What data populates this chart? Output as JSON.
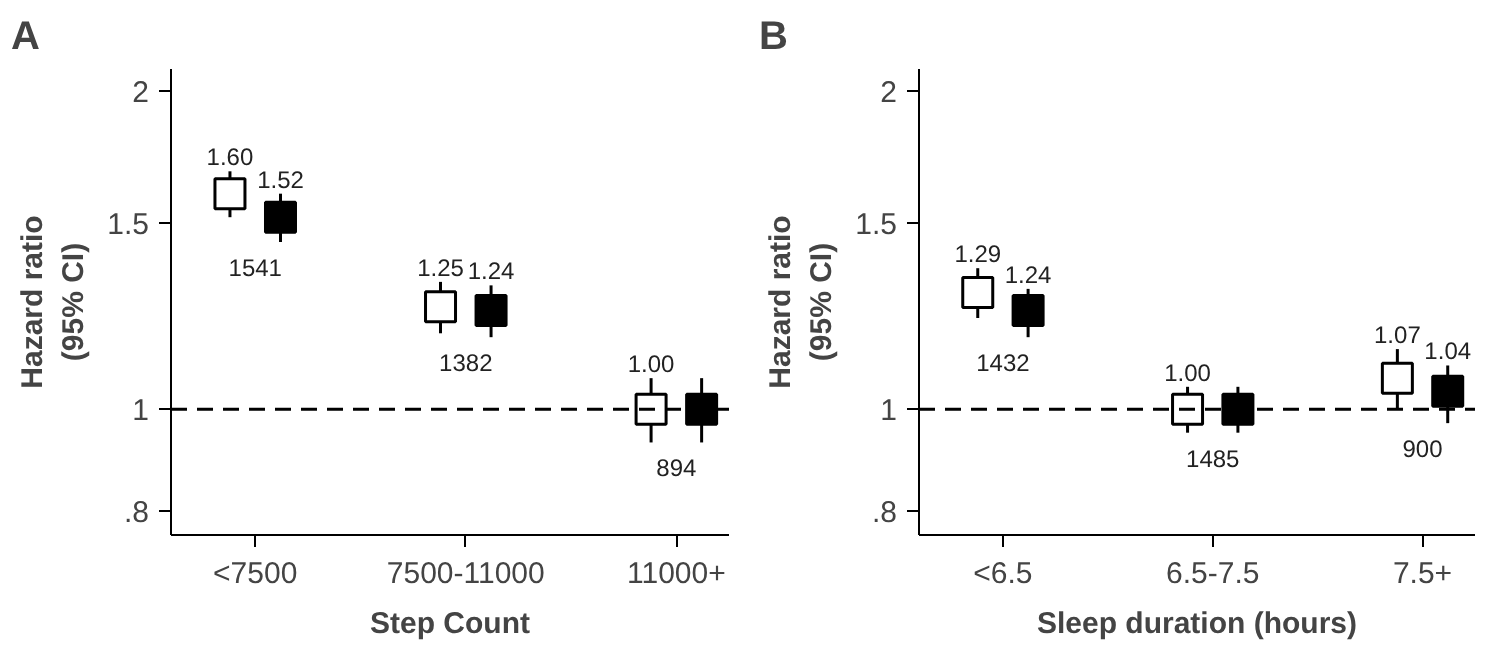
{
  "chart_data": [
    {
      "type": "scatter",
      "title": "A",
      "xlabel": "Step Count",
      "ylabel": "Hazard ratio\n(95% CI)",
      "categories": [
        "<7500",
        "7500-11000",
        "11000+"
      ],
      "log": true,
      "ylim": [
        0.76,
        2.1
      ],
      "yticks": [
        {
          "value": 0.8,
          "label": ".8"
        },
        1,
        1.5,
        2
      ],
      "marker": "square",
      "grid": false,
      "series": [
        {
          "color": "#ffffff",
          "values": [
            1.6,
            1.25,
            1.0
          ],
          "errors": [
            [
              1.52,
              1.68
            ],
            [
              1.18,
              1.32
            ],
            [
              0.93,
              1.07
            ]
          ],
          "value_labels": [
            "1.60",
            "1.25",
            "1.00"
          ]
        },
        {
          "color": "#000000",
          "values": [
            1.52,
            1.24,
            1.0
          ],
          "errors": [
            [
              1.44,
              1.6
            ],
            [
              1.17,
              1.31
            ],
            [
              0.93,
              1.07
            ]
          ],
          "value_labels": [
            "1.52",
            "1.24",
            null
          ]
        }
      ],
      "ref_lines": [
        {
          "axis": "y",
          "value": 1,
          "color": "#000000",
          "line_style": "dashed"
        }
      ],
      "annotations": [
        "1541",
        "1382",
        "894"
      ]
    },
    {
      "type": "scatter",
      "title": "B",
      "xlabel": "Sleep duration (hours)",
      "ylabel": "Hazard ratio\n(95% CI)",
      "categories": [
        "<6.5",
        "6.5-7.5",
        "7.5+"
      ],
      "log": true,
      "ylim": [
        0.76,
        2.1
      ],
      "yticks": [
        {
          "value": 0.8,
          "label": ".8"
        },
        1,
        1.5,
        2
      ],
      "marker": "square",
      "grid": false,
      "series": [
        {
          "color": "#ffffff",
          "values": [
            1.29,
            1.0,
            1.07
          ],
          "errors": [
            [
              1.22,
              1.36
            ],
            [
              0.95,
              1.05
            ],
            [
              1.0,
              1.14
            ]
          ],
          "value_labels": [
            "1.29",
            "1.00",
            "1.07"
          ]
        },
        {
          "color": "#000000",
          "values": [
            1.24,
            1.0,
            1.04
          ],
          "errors": [
            [
              1.17,
              1.3
            ],
            [
              0.95,
              1.05
            ],
            [
              0.97,
              1.1
            ]
          ],
          "value_labels": [
            "1.24",
            null,
            "1.04"
          ]
        }
      ],
      "ref_lines": [
        {
          "axis": "y",
          "value": 1,
          "color": "#000000",
          "line_style": "dashed"
        }
      ],
      "annotations": [
        "1432",
        "1485",
        "900"
      ]
    }
  ]
}
